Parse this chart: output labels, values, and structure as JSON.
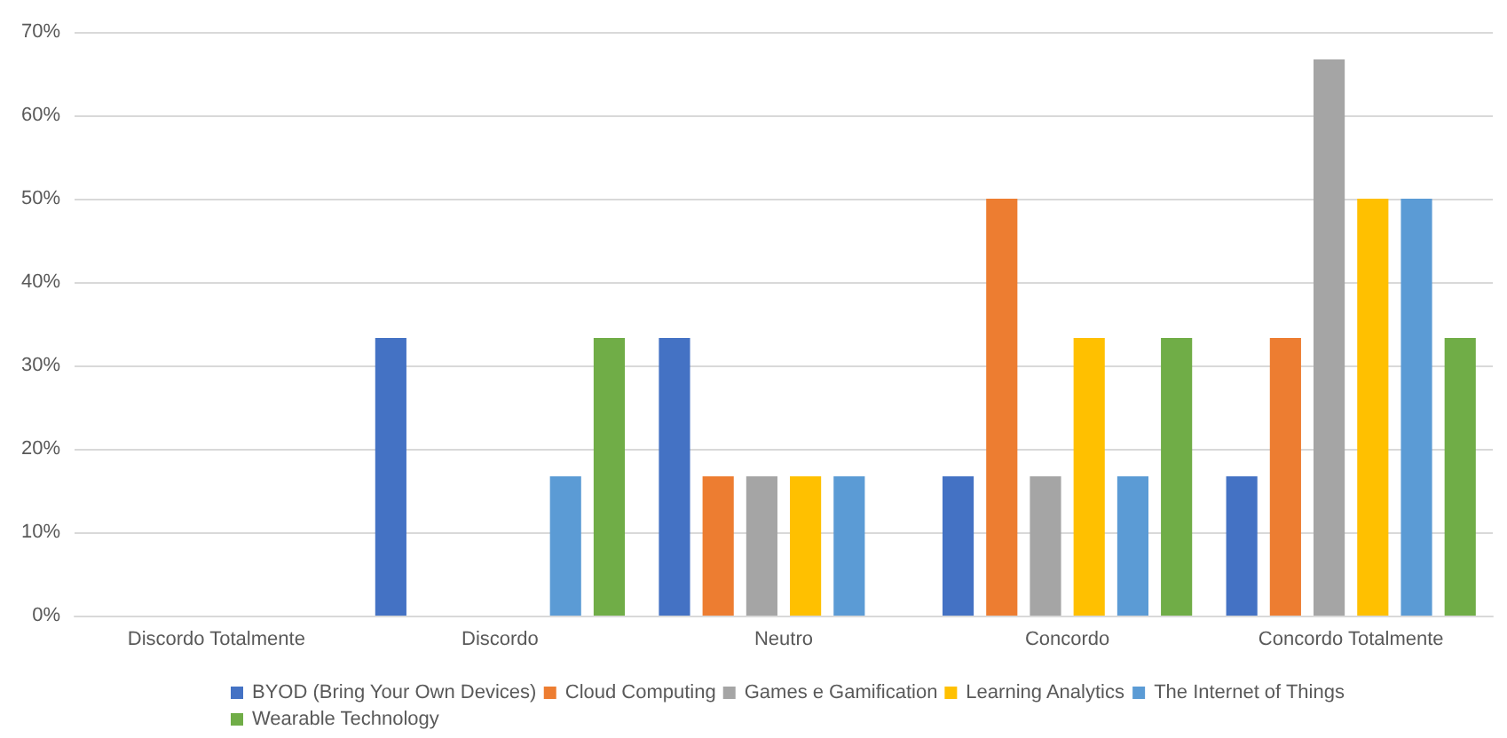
{
  "chart_data": {
    "type": "bar",
    "categories": [
      "Discordo Totalmente",
      "Discordo",
      "Neutro",
      "Concordo",
      "Concordo Totalmente"
    ],
    "series": [
      {
        "name": "BYOD (Bring Your Own Devices)",
        "color": "#4472c4",
        "values": [
          0,
          33.3,
          33.3,
          16.7,
          16.7
        ]
      },
      {
        "name": "Cloud Computing",
        "color": "#ed7d31",
        "values": [
          0,
          0,
          16.7,
          50,
          33.3
        ]
      },
      {
        "name": "Games e Gamification",
        "color": "#a5a5a5",
        "values": [
          0,
          0,
          16.7,
          16.7,
          66.7
        ]
      },
      {
        "name": "Learning Analytics",
        "color": "#ffc000",
        "values": [
          0,
          0,
          16.7,
          33.3,
          50
        ]
      },
      {
        "name": "The Internet of Things",
        "color": "#5b9bd5",
        "values": [
          0,
          16.7,
          16.7,
          16.7,
          50
        ]
      },
      {
        "name": "Wearable Technology",
        "color": "#70ad47",
        "values": [
          0,
          33.3,
          0,
          33.3,
          33.3
        ]
      }
    ],
    "ylim": [
      0,
      70
    ],
    "yticks": [
      {
        "value": 0,
        "label": "0%"
      },
      {
        "value": 10,
        "label": "10%"
      },
      {
        "value": 20,
        "label": "20%"
      },
      {
        "value": 30,
        "label": "30%"
      },
      {
        "value": 40,
        "label": "40%"
      },
      {
        "value": 50,
        "label": "50%"
      },
      {
        "value": 60,
        "label": "60%"
      },
      {
        "value": 70,
        "label": "70%"
      }
    ],
    "grid": "y",
    "legend": "bottom"
  }
}
